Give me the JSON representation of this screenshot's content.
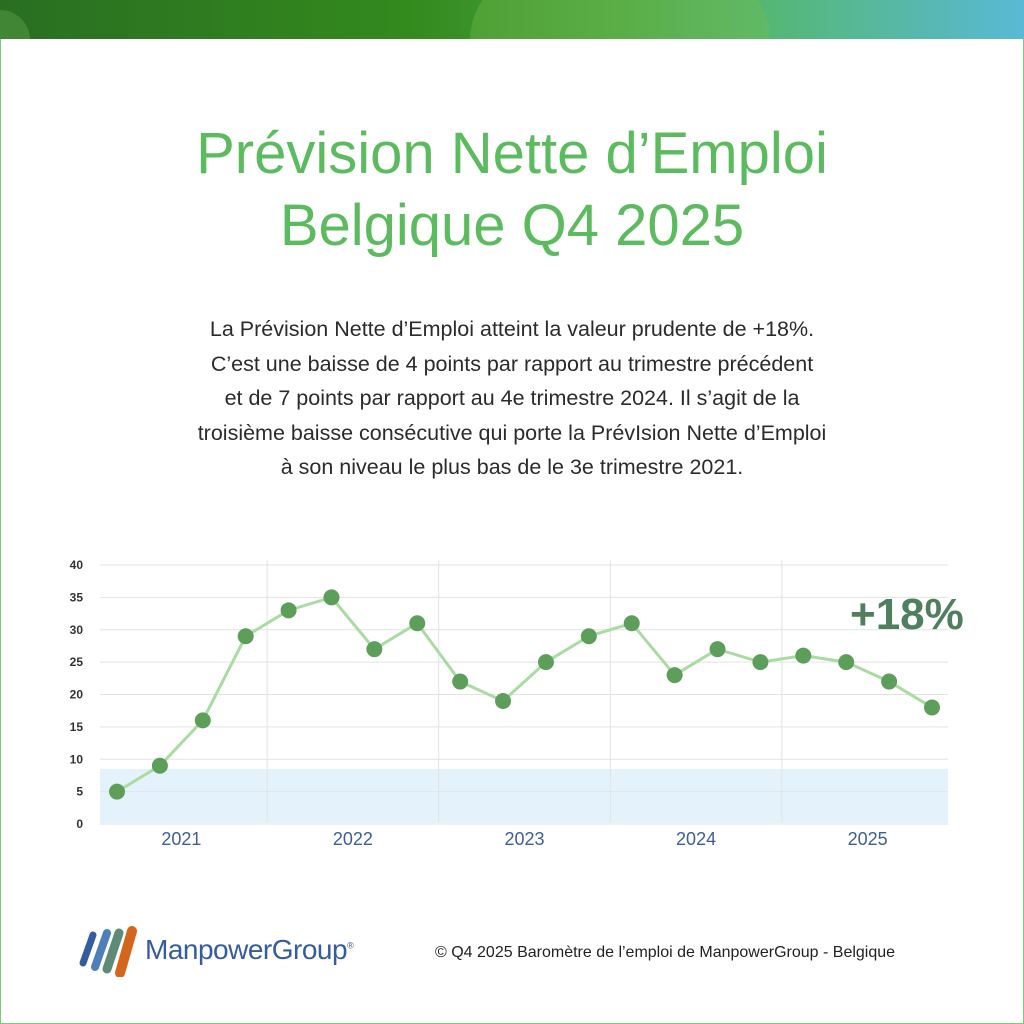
{
  "header": {
    "title_line1": "Prévision Nette d’Emploi",
    "title_line2": "Belgique Q4 2025"
  },
  "description": {
    "lines": [
      "La Prévision Nette d’Emploi atteint la valeur prudente de +18%.",
      "C’est une baisse de 4 points par rapport au trimestre précédent",
      "et de 7 points par rapport au 4e trimestre 2024. Il s’agit de la",
      "troisième baisse consécutive qui porte la PrévIsion Nette d’Emploi",
      "à son niveau le plus bas de le 3e trimestre 2021."
    ]
  },
  "highlight": {
    "value_label": "+18%"
  },
  "footer": {
    "logo_text": "ManpowerGroup",
    "logo_reg": "®",
    "copyright": "© Q4 2025 Baromètre de l’emploi de ManpowerGroup - Belgique"
  },
  "colors": {
    "title_green": "#5dbb5f",
    "point_green": "#5e9e5b",
    "line_green": "#a9dba3",
    "band_blue": "#e4f3fb",
    "year_label_blue": "#3d5f94",
    "highlight_green": "#4f7f5e",
    "logo_blue": "#355c9c",
    "logo_orange": "#d5651a",
    "logo_teal": "#5e8a78"
  },
  "chart_data": {
    "type": "line",
    "title": "",
    "xlabel": "",
    "ylabel": "",
    "ylim": [
      0,
      40
    ],
    "yticks": [
      0,
      5,
      10,
      15,
      20,
      25,
      30,
      35,
      40
    ],
    "grid": true,
    "year_labels": [
      "2021",
      "2022",
      "2023",
      "2024",
      "2025"
    ],
    "x": [
      "2021 Q1",
      "2021 Q2",
      "2021 Q3",
      "2021 Q4",
      "2022 Q1",
      "2022 Q2",
      "2022 Q3",
      "2022 Q4",
      "2023 Q1",
      "2023 Q2",
      "2023 Q3",
      "2023 Q4",
      "2024 Q1",
      "2024 Q2",
      "2024 Q3",
      "2024 Q4",
      "2025 Q1",
      "2025 Q2",
      "2025 Q3",
      "2025 Q4"
    ],
    "series": [
      {
        "name": "Prévision Nette d’Emploi",
        "values": [
          5,
          9,
          16,
          29,
          33,
          35,
          27,
          31,
          22,
          19,
          25,
          29,
          31,
          23,
          27,
          25,
          26,
          25,
          22,
          18
        ]
      }
    ],
    "shaded_band": {
      "from": 0,
      "to": 8.5
    },
    "annotation": "+18%"
  }
}
